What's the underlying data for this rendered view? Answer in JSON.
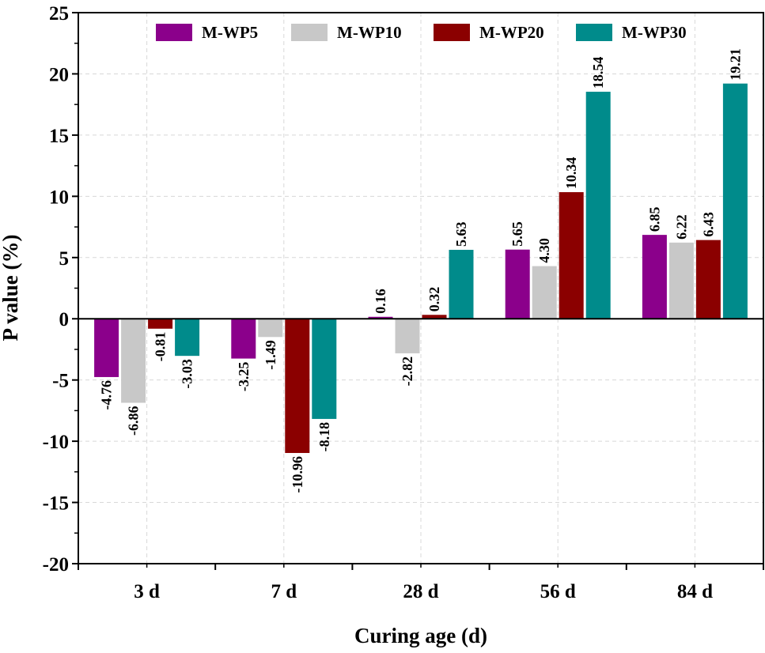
{
  "chart_data": {
    "type": "bar",
    "title": "",
    "xlabel": "Curing age (d)",
    "ylabel": "P value (%)",
    "ylim": [
      -20,
      25
    ],
    "yticks": [
      -20,
      -15,
      -10,
      -5,
      0,
      5,
      10,
      15,
      20,
      25
    ],
    "ytick_labels": [
      "-20",
      "-15",
      "-10",
      "-5",
      "0",
      "5",
      "10",
      "15",
      "20",
      "25"
    ],
    "categories": [
      "3 d",
      "7 d",
      "28 d",
      "56 d",
      "84 d"
    ],
    "grid": true,
    "legend_position": "top",
    "series": [
      {
        "name": "M-WP5",
        "color": "#8b008b",
        "values": [
          -4.76,
          -3.25,
          0.16,
          5.65,
          6.85
        ],
        "labels": [
          "-4.76",
          "-3.25",
          "0.16",
          "5.65",
          "6.85"
        ]
      },
      {
        "name": "M-WP10",
        "color": "#c8c8c8",
        "values": [
          -6.86,
          -1.49,
          -2.82,
          4.3,
          6.22
        ],
        "labels": [
          "-6.86",
          "-1.49",
          "-2.82",
          "4.30",
          "6.22"
        ]
      },
      {
        "name": "M-WP20",
        "color": "#8b0000",
        "values": [
          -0.81,
          -10.96,
          0.32,
          10.34,
          6.43
        ],
        "labels": [
          "-0.81",
          "-10.96",
          "0.32",
          "10.34",
          "6.43"
        ]
      },
      {
        "name": "M-WP30",
        "color": "#008b8b",
        "values": [
          -3.03,
          -8.18,
          5.63,
          18.54,
          19.21
        ],
        "labels": [
          "-3.03",
          "-8.18",
          "5.63",
          "18.54",
          "19.21"
        ]
      }
    ]
  }
}
